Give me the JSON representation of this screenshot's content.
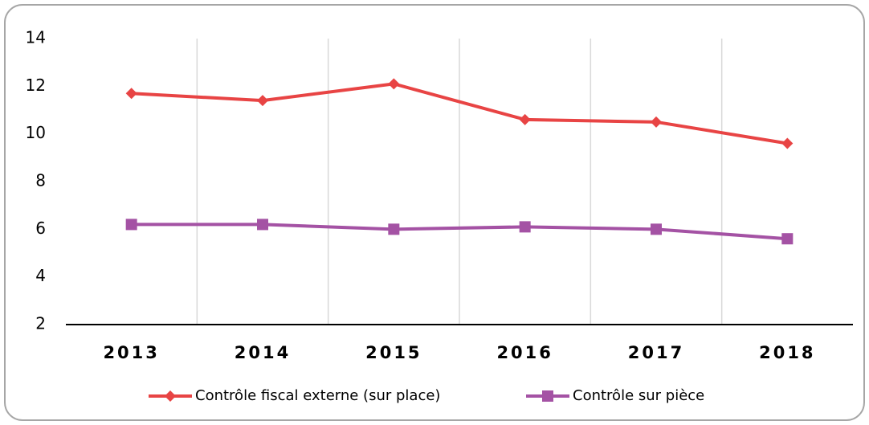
{
  "chart_data": {
    "type": "line",
    "categories": [
      "2013",
      "2014",
      "2015",
      "2016",
      "2017",
      "2018"
    ],
    "series": [
      {
        "name": "Contrôle fiscal externe (sur place)",
        "color": "#e84444",
        "marker": "diamond",
        "values": [
          11.7,
          11.4,
          12.1,
          10.6,
          10.5,
          9.6
        ]
      },
      {
        "name": "Contrôle sur pièce",
        "color": "#a452a4",
        "marker": "square",
        "values": [
          6.2,
          6.2,
          6.0,
          6.1,
          6.0,
          5.6
        ]
      }
    ],
    "ylim": [
      2,
      14
    ],
    "yticks": [
      2,
      4,
      6,
      8,
      10,
      12,
      14
    ],
    "grid": "x",
    "legend": "bottom"
  }
}
